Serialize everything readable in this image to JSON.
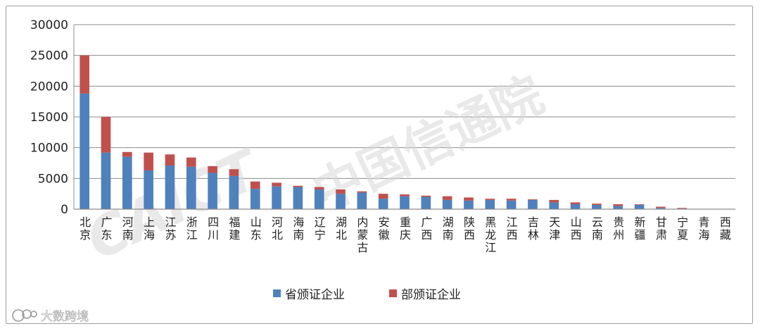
{
  "chart_data": {
    "type": "bar",
    "stacked": true,
    "title": "",
    "xlabel": "",
    "ylabel": "",
    "ylim": [
      0,
      30000
    ],
    "yticks": [
      0,
      5000,
      10000,
      15000,
      20000,
      25000,
      30000
    ],
    "grid": true,
    "legend_position": "bottom",
    "categories": [
      "北京",
      "广东",
      "河南",
      "上海",
      "江苏",
      "浙江",
      "四川",
      "福建",
      "山东",
      "河北",
      "海南",
      "辽宁",
      "湖北",
      "内蒙古",
      "安徽",
      "重庆",
      "广西",
      "湖南",
      "陕西",
      "黑龙江",
      "江西",
      "吉林",
      "天津",
      "山西",
      "云南",
      "贵州",
      "新疆",
      "甘肃",
      "宁夏",
      "青海",
      "西藏"
    ],
    "series": [
      {
        "name": "省颁证企业",
        "color": "#4f81bd",
        "values": [
          18800,
          9200,
          8500,
          6300,
          7100,
          6900,
          5900,
          5400,
          3300,
          3700,
          3600,
          3200,
          2500,
          2700,
          1700,
          2100,
          2000,
          1500,
          1400,
          1500,
          1400,
          1500,
          1100,
          800,
          700,
          500,
          700,
          200,
          100,
          0,
          0
        ]
      },
      {
        "name": "部颁证企业",
        "color": "#c0504d",
        "values": [
          6200,
          5800,
          800,
          2900,
          1800,
          1500,
          1100,
          1100,
          1200,
          600,
          200,
          400,
          700,
          200,
          800,
          300,
          200,
          600,
          500,
          200,
          300,
          100,
          400,
          300,
          200,
          300,
          100,
          200,
          100,
          0,
          0
        ]
      }
    ]
  },
  "watermark": {
    "text": "中国信通院",
    "logo_text": "CAICT"
  },
  "brand": {
    "icon": "circle-logo-icon",
    "text": "大数跨境"
  }
}
